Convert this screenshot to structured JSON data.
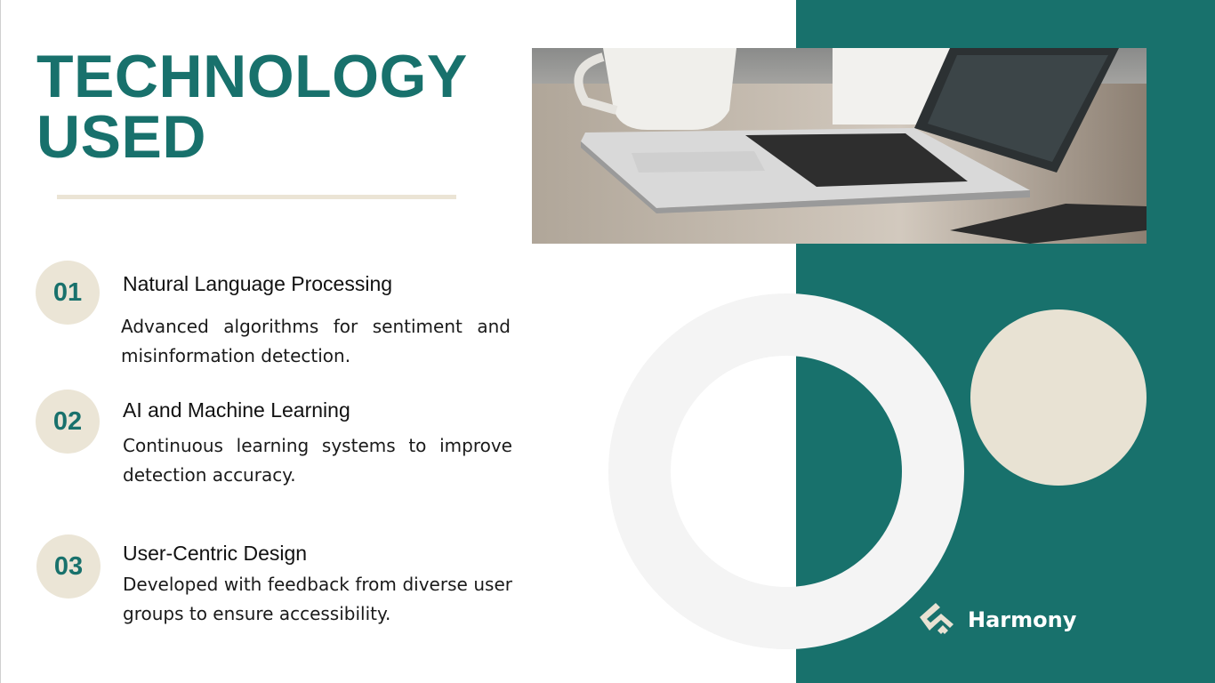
{
  "slide": {
    "title_line1": "TECHNOLOGY",
    "title_line2": "USED",
    "items": [
      {
        "number": "01",
        "title": "Natural Language Processing",
        "description": "Advanced algorithms for sentiment and misinformation detection."
      },
      {
        "number": "02",
        "title": "AI and Machine Learning",
        "description": "Continuous learning systems to improve detection accuracy."
      },
      {
        "number": "03",
        "title": "User-Centric Design",
        "description": "Developed with feedback from diverse user groups to ensure accessibility."
      }
    ],
    "brand": {
      "name": "Harmony",
      "icon": "harmony-logo-icon"
    }
  },
  "colors": {
    "accent": "#18716c",
    "cream": "#e8e2d3",
    "ring": "#f4f4f4"
  }
}
